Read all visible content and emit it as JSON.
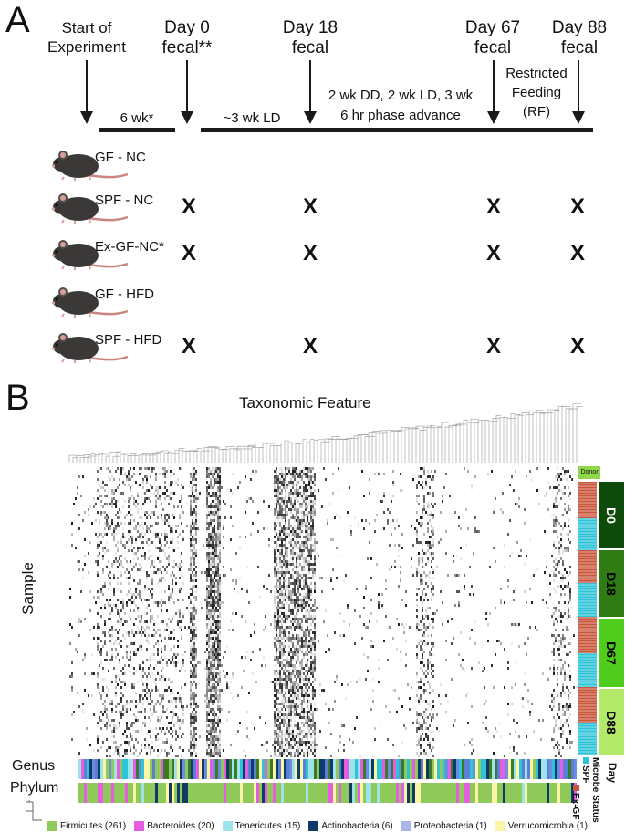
{
  "panel_a": {
    "letter": "A",
    "timepoints": [
      {
        "line1": "Start of",
        "line2": "Experiment"
      },
      {
        "line1": "Day 0",
        "line2": "fecal**"
      },
      {
        "line1": "Day 18",
        "line2": "fecal"
      },
      {
        "line1": "Day 67",
        "line2": "fecal"
      },
      {
        "line1": "Day 88",
        "line2": "fecal"
      }
    ],
    "periods": {
      "p1": "6 wk*",
      "p2": "~3 wk LD",
      "p3_line1": "2 wk DD, 2 wk LD, 3 wk",
      "p3_line2": "6 hr phase advance",
      "p4_line1": "Restricted",
      "p4_line2": "Feeding",
      "p4_line3": "(RF)"
    },
    "groups": [
      {
        "name": "GF - NC",
        "x": [
          "",
          "",
          "",
          ""
        ]
      },
      {
        "name": "SPF - NC",
        "x": [
          "X",
          "X",
          "X",
          "X"
        ]
      },
      {
        "name": "Ex-GF-NC*",
        "x": [
          "X",
          "X",
          "X",
          "X"
        ]
      },
      {
        "name": "GF - HFD",
        "x": [
          "",
          "",
          "",
          ""
        ]
      },
      {
        "name": "SPF - HFD",
        "x": [
          "X",
          "X",
          "X",
          "X"
        ]
      }
    ]
  },
  "panel_b": {
    "letter": "B",
    "column_title": "Taxonomic Feature",
    "row_title": "Sample",
    "donor_label": "Donor",
    "days": [
      "D0",
      "D18",
      "D67",
      "D88"
    ],
    "row_labels": {
      "genus": "Genus",
      "phylum": "Phylum"
    },
    "side_labels": {
      "day": "Day",
      "microbe_status": "Microbe Status",
      "spf": "SPF",
      "exgf": "Ex-GF"
    },
    "legend": [
      {
        "name": "Firmicutes (261)",
        "color": "#8fc95a"
      },
      {
        "name": "Bacteroides (20)",
        "color": "#e55de0"
      },
      {
        "name": "Tenericutes (15)",
        "color": "#9ee2ea"
      },
      {
        "name": "Actinobacteria (6)",
        "color": "#0f3a68"
      },
      {
        "name": "Proteobacteria (1)",
        "color": "#a9b6ec"
      },
      {
        "name": "Verrucomicrobia (1)",
        "color": "#fbf5a6"
      }
    ],
    "colors": {
      "spf": "#2fc3d8",
      "exgf": "#c8563c",
      "donor": "#8ed84a",
      "d0": "#0e4a0a",
      "d18": "#2f7c14",
      "d67": "#4fcc1c",
      "d88": "#b4ea6a"
    }
  }
}
